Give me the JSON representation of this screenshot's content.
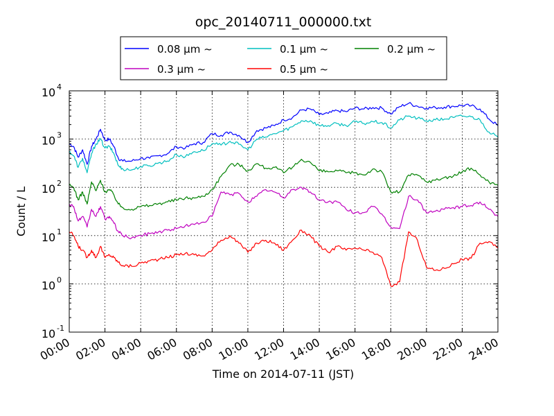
{
  "chart_data": {
    "type": "line",
    "title": "opc_20140711_000000.txt",
    "xlabel": "Time on 2014-07-11 (JST)",
    "ylabel": "Count / L",
    "x_unit": "hours",
    "xlim": [
      0,
      24
    ],
    "ylim": [
      0.1,
      10000
    ],
    "yscale": "log",
    "grid": true,
    "legend_position": "top-center",
    "x_ticks": [
      "00:00",
      "02:00",
      "04:00",
      "06:00",
      "08:00",
      "10:00",
      "12:00",
      "14:00",
      "16:00",
      "18:00",
      "20:00",
      "22:00",
      "24:00"
    ],
    "y_ticks": [
      {
        "base": "10",
        "exp": "-1",
        "value": 0.1
      },
      {
        "base": "10",
        "exp": "0",
        "value": 1
      },
      {
        "base": "10",
        "exp": "1",
        "value": 10
      },
      {
        "base": "10",
        "exp": "2",
        "value": 100
      },
      {
        "base": "10",
        "exp": "3",
        "value": 1000
      },
      {
        "base": "10",
        "exp": "4",
        "value": 10000
      }
    ],
    "series": [
      {
        "name": "0.08 μm ~",
        "color": "#0000ff",
        "x": [
          0,
          0.25,
          0.5,
          0.75,
          1,
          1.25,
          1.5,
          1.75,
          2,
          2.25,
          2.5,
          2.75,
          3,
          3.5,
          4,
          4.5,
          5,
          5.5,
          6,
          6.5,
          7,
          7.5,
          8,
          8.5,
          9,
          9.5,
          10,
          10.5,
          11,
          11.5,
          12,
          12.5,
          13,
          13.5,
          14,
          14.5,
          15,
          15.5,
          16,
          16.5,
          17,
          17.5,
          18,
          18.5,
          19,
          19.5,
          20,
          20.5,
          21,
          21.5,
          22,
          22.5,
          23,
          23.5,
          24
        ],
        "y": [
          800,
          700,
          420,
          600,
          300,
          700,
          1000,
          1600,
          950,
          1000,
          700,
          400,
          350,
          350,
          400,
          400,
          450,
          500,
          700,
          650,
          800,
          850,
          1300,
          1200,
          1400,
          1200,
          850,
          1500,
          1700,
          1900,
          2500,
          2800,
          4000,
          4200,
          3200,
          3400,
          3900,
          3700,
          4400,
          4200,
          4500,
          4400,
          3300,
          4700,
          5500,
          4800,
          4400,
          4500,
          4600,
          4800,
          5000,
          4900,
          4200,
          2600,
          1900
        ]
      },
      {
        "name": "0.1 μm ~",
        "color": "#00bfbf",
        "x": [
          0,
          0.25,
          0.5,
          0.75,
          1,
          1.25,
          1.5,
          1.75,
          2,
          2.25,
          2.5,
          2.75,
          3,
          3.5,
          4,
          4.5,
          5,
          5.5,
          6,
          6.5,
          7,
          7.5,
          8,
          8.5,
          9,
          9.5,
          10,
          10.5,
          11,
          11.5,
          12,
          12.5,
          13,
          13.5,
          14,
          14.5,
          15,
          15.5,
          16,
          16.5,
          17,
          17.5,
          18,
          18.5,
          19,
          19.5,
          20,
          20.5,
          21,
          21.5,
          22,
          22.5,
          23,
          23.5,
          24
        ],
        "y": [
          550,
          450,
          260,
          400,
          200,
          500,
          800,
          1000,
          650,
          700,
          500,
          280,
          240,
          230,
          270,
          280,
          320,
          350,
          480,
          430,
          550,
          580,
          800,
          750,
          900,
          780,
          600,
          1000,
          1100,
          1300,
          1500,
          1800,
          2400,
          2400,
          1900,
          1900,
          2100,
          1900,
          2300,
          2100,
          2300,
          2200,
          1700,
          2500,
          3000,
          2700,
          2400,
          2500,
          2600,
          2800,
          3000,
          2900,
          2500,
          1400,
          1100
        ]
      },
      {
        "name": "0.2 μm ~",
        "color": "#008000",
        "x": [
          0,
          0.25,
          0.5,
          0.75,
          1,
          1.25,
          1.5,
          1.75,
          2,
          2.25,
          2.5,
          2.75,
          3,
          3.5,
          4,
          4.5,
          5,
          5.5,
          6,
          6.5,
          7,
          7.5,
          8,
          8.5,
          9,
          9.5,
          10,
          10.5,
          11,
          11.5,
          12,
          12.5,
          13,
          13.5,
          14,
          14.5,
          15,
          15.5,
          16,
          16.5,
          17,
          17.5,
          18,
          18.5,
          19,
          19.5,
          20,
          20.5,
          21,
          21.5,
          22,
          22.5,
          23,
          23.5,
          24
        ],
        "y": [
          110,
          100,
          55,
          80,
          45,
          130,
          85,
          140,
          80,
          90,
          70,
          45,
          38,
          35,
          40,
          42,
          46,
          50,
          55,
          60,
          60,
          65,
          90,
          170,
          290,
          300,
          220,
          310,
          250,
          260,
          200,
          260,
          380,
          330,
          220,
          210,
          220,
          200,
          200,
          180,
          240,
          210,
          80,
          80,
          180,
          180,
          130,
          140,
          160,
          170,
          210,
          250,
          180,
          130,
          110
        ]
      },
      {
        "name": "0.3 μm ~",
        "color": "#bf00bf",
        "x": [
          0,
          0.25,
          0.5,
          0.75,
          1,
          1.25,
          1.5,
          1.75,
          2,
          2.25,
          2.5,
          2.75,
          3,
          3.5,
          4,
          4.5,
          5,
          5.5,
          6,
          6.5,
          7,
          7.5,
          8,
          8.5,
          9,
          9.5,
          10,
          10.5,
          11,
          11.5,
          12,
          12.5,
          13,
          13.5,
          14,
          14.5,
          15,
          15.5,
          16,
          16.5,
          17,
          17.5,
          18,
          18.5,
          19,
          19.5,
          20,
          20.5,
          21,
          21.5,
          22,
          22.5,
          23,
          23.5,
          24
        ],
        "y": [
          45,
          40,
          20,
          25,
          15,
          35,
          25,
          40,
          22,
          25,
          18,
          12,
          10,
          9,
          10,
          11,
          12,
          13,
          14,
          16,
          17,
          19,
          25,
          80,
          70,
          75,
          50,
          65,
          90,
          80,
          60,
          90,
          100,
          80,
          55,
          50,
          50,
          35,
          30,
          30,
          40,
          28,
          15,
          14,
          65,
          55,
          30,
          32,
          35,
          38,
          40,
          42,
          50,
          35,
          25
        ]
      },
      {
        "name": "0.5 μm ~",
        "color": "#ff0000",
        "x": [
          0,
          0.25,
          0.5,
          0.75,
          1,
          1.25,
          1.5,
          1.75,
          2,
          2.25,
          2.5,
          2.75,
          3,
          3.5,
          4,
          4.5,
          5,
          5.5,
          6,
          6.5,
          7,
          7.5,
          8,
          8.5,
          9,
          9.5,
          10,
          10.5,
          11,
          11.5,
          12,
          12.5,
          13,
          13.5,
          14,
          14.5,
          15,
          15.5,
          16,
          16.5,
          17,
          17.5,
          18,
          18.5,
          19,
          19.5,
          20,
          20.5,
          21,
          21.5,
          22,
          22.5,
          23,
          23.5,
          24
        ],
        "y": [
          12,
          10,
          6,
          5,
          3.5,
          5,
          3.5,
          6,
          3.5,
          4,
          3.5,
          2.8,
          2.4,
          2.3,
          2.7,
          3,
          3.2,
          3.5,
          4,
          4.3,
          4,
          3.8,
          5,
          8,
          10,
          7,
          4.5,
          7,
          8,
          7,
          5,
          8,
          13,
          10,
          6,
          4.5,
          6,
          5,
          5.5,
          5,
          4.5,
          3.5,
          0.9,
          1.1,
          12,
          8,
          2.2,
          1.9,
          2.1,
          2.6,
          3.2,
          3.4,
          7,
          7.5,
          5.5
        ]
      }
    ]
  }
}
